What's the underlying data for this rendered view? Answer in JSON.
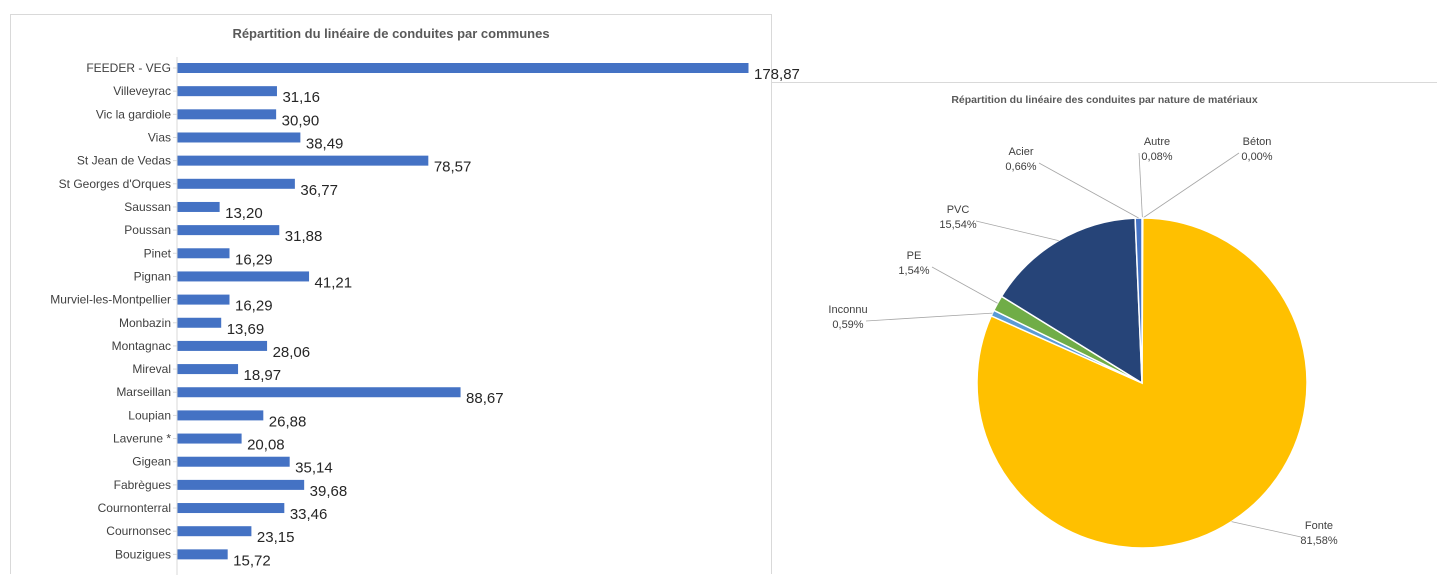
{
  "chart_data": [
    {
      "type": "bar",
      "orientation": "horizontal",
      "title": "Répartition du linéaire de conduites par communes",
      "categories": [
        "FEEDER - VEG",
        "Villeveyrac",
        "Vic la gardiole",
        "Vias",
        "St Jean de Vedas",
        "St Georges d'Orques",
        "Saussan",
        "Poussan",
        "Pinet",
        "Pignan",
        "Murviel-les-Montpellier",
        "Monbazin",
        "Montagnac",
        "Mireval",
        "Marseillan",
        "Loupian",
        "Laverune *",
        "Gigean",
        "Fabrègues",
        "Cournonterral",
        "Cournonsec",
        "Bouzigues"
      ],
      "values": [
        178.87,
        31.16,
        30.9,
        38.49,
        78.57,
        36.77,
        13.2,
        31.88,
        16.29,
        41.21,
        16.29,
        13.69,
        28.06,
        18.97,
        88.67,
        26.88,
        20.08,
        35.14,
        39.68,
        33.46,
        23.15,
        15.72
      ],
      "value_labels": [
        "178,87",
        "31,16",
        "30,90",
        "38,49",
        "78,57",
        "36,77",
        "13,20",
        "31,88",
        "16,29",
        "41,21",
        "16,29",
        "13,69",
        "28,06",
        "18,97",
        "88,67",
        "26,88",
        "20,08",
        "35,14",
        "39,68",
        "33,46",
        "23,15",
        "15,72"
      ],
      "color": "#4472C4",
      "xlim": [
        0,
        178.87
      ],
      "grid": false
    },
    {
      "type": "pie",
      "title": "Répartition du linéaire des conduites par nature de matériaux",
      "slices": [
        {
          "name": "Autre",
          "label": "0,08%",
          "value": 0.08,
          "color": "#5B9BD5"
        },
        {
          "name": "Béton",
          "label": "0,00%",
          "value": 0.0,
          "color": "#A5A5A5"
        },
        {
          "name": "Fonte",
          "label": "81,58%",
          "value": 81.58,
          "color": "#FFC000"
        },
        {
          "name": "Inconnu",
          "label": "0,59%",
          "value": 0.59,
          "color": "#5B9BD5"
        },
        {
          "name": "PE",
          "label": "1,54%",
          "value": 1.54,
          "color": "#70AD47"
        },
        {
          "name": "PVC",
          "label": "15,54%",
          "value": 15.54,
          "color": "#264478"
        },
        {
          "name": "Acier",
          "label": "0,66%",
          "value": 0.66,
          "color": "#4472C4"
        }
      ]
    }
  ]
}
